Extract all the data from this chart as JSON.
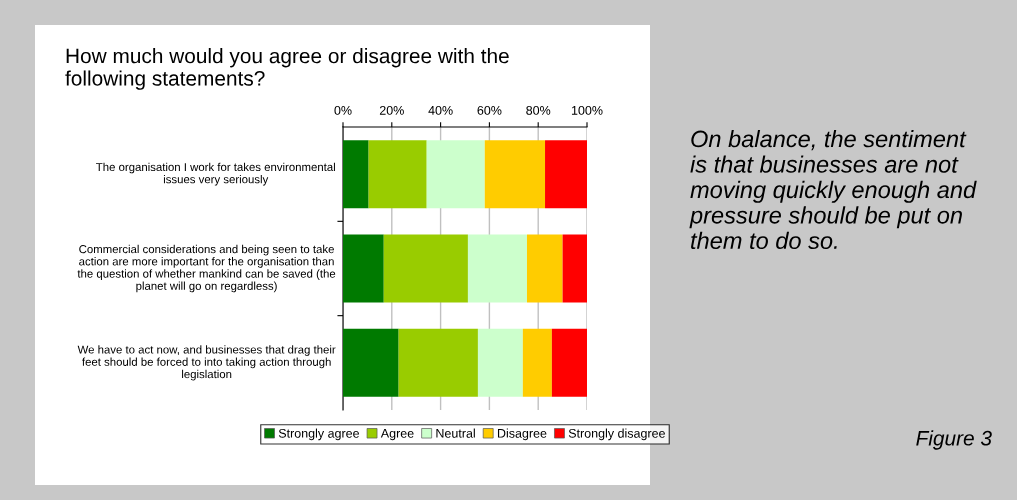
{
  "chart_data": {
    "type": "bar",
    "orientation": "horizontal",
    "stacked": true,
    "title": "How much would you agree or disagree with the following statements?",
    "categories": [
      "The organisation I work for takes environmental issues very seriously",
      "Commercial considerations and being seen to take action are more important for the organisation than the question of whether mankind can be saved (the planet will go on regardless)",
      "We have to act now, and businesses that drag their feet should be forced to into taking action through legislation"
    ],
    "series": [
      {
        "name": "Strongly agree",
        "color": "#007a00",
        "values": [
          10.5,
          16.7,
          22.8
        ]
      },
      {
        "name": "Agree",
        "color": "#99cc00",
        "values": [
          23.8,
          34.5,
          32.5
        ]
      },
      {
        "name": "Neutral",
        "color": "#ccffcc",
        "values": [
          23.8,
          24.2,
          18.4
        ]
      },
      {
        "name": "Disagree",
        "color": "#ffcc00",
        "values": [
          24.7,
          14.6,
          11.9
        ]
      },
      {
        "name": "Strongly disagree",
        "color": "#ff0000",
        "values": [
          17.2,
          10.0,
          14.4
        ]
      }
    ],
    "xlim": [
      0,
      100
    ],
    "xticks": [
      {
        "value": 0,
        "label": "0%"
      },
      {
        "value": 20,
        "label": "20%"
      },
      {
        "value": 40,
        "label": "40%"
      },
      {
        "value": 60,
        "label": "60%"
      },
      {
        "value": 80,
        "label": "80%"
      },
      {
        "value": 100,
        "label": "100%"
      }
    ],
    "grid": "x",
    "legend": "bottom",
    "annotations": [
      "On balance, the sentiment is that businesses are not moving quickly enough and pressure should be put on them to do so.",
      "Figure 3"
    ]
  }
}
